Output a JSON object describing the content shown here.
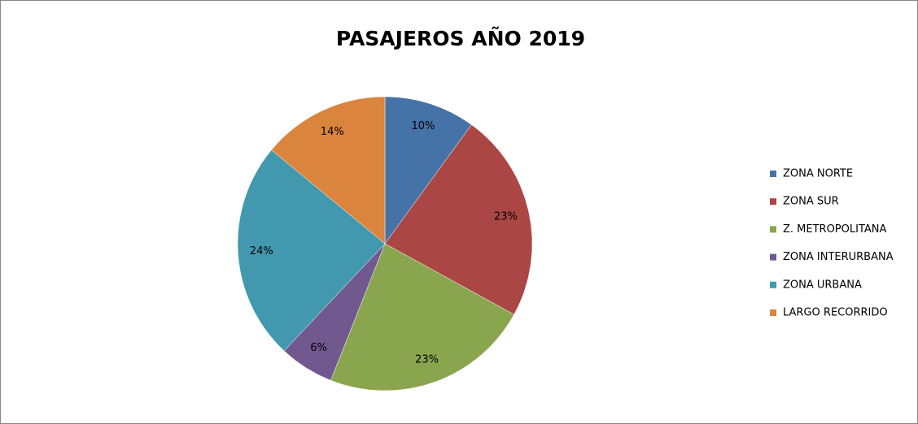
{
  "chart_data": {
    "type": "pie",
    "title": "PASAJEROS AÑO 2019",
    "categories": [
      "ZONA NORTE",
      "ZONA SUR",
      "Z. METROPOLITANA",
      "ZONA INTERURBANA",
      "ZONA URBANA",
      "LARGO RECORRIDO"
    ],
    "values": [
      10,
      23,
      23,
      6,
      24,
      14
    ],
    "value_labels": [
      "10%",
      "23%",
      "23%",
      "6%",
      "24%",
      "14%"
    ],
    "colors": [
      "#4572a7",
      "#aa4643",
      "#89a54e",
      "#71588f",
      "#4198af",
      "#db843d"
    ],
    "legend": "right"
  }
}
